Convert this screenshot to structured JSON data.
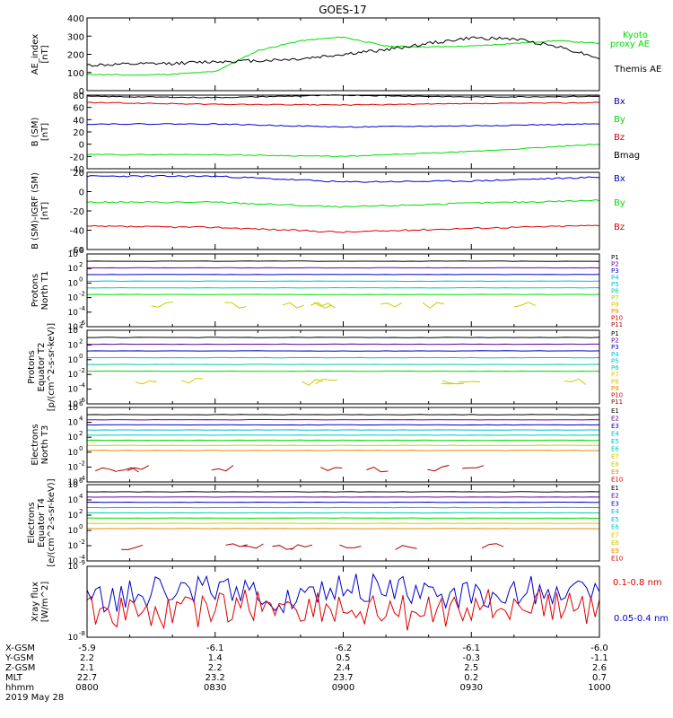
{
  "title": "GOES-17",
  "footer": {
    "rows": [
      {
        "label": "X-GSM",
        "values": [
          "-5.9",
          "-6.1",
          "-6.2",
          "-6.1",
          "-6.0"
        ]
      },
      {
        "label": "Y-GSM",
        "values": [
          "2.2",
          "1.4",
          "0.5",
          "-0.3",
          "-1.1"
        ]
      },
      {
        "label": "Z-GSM",
        "values": [
          "2.1",
          "2.2",
          "2.4",
          "2.5",
          "2.6"
        ]
      },
      {
        "label": "MLT",
        "values": [
          "22.7",
          "23.2",
          "23.7",
          "0.2",
          "0.7"
        ]
      },
      {
        "label": "hhmm",
        "values": [
          "0800",
          "0830",
          "0900",
          "0930",
          "1000"
        ]
      }
    ],
    "date": "2019 May 28"
  },
  "colors": {
    "black": "#000000",
    "green": "#00dd00",
    "blue": "#0000cc",
    "red": "#dd0000",
    "purple": "#660099",
    "cyan": "#00bbdd",
    "aqua": "#00ccaa",
    "yellow": "#cccc00",
    "orange": "#ee8800",
    "darkred": "#aa0000"
  },
  "chart_data": [
    {
      "type": "line",
      "ylabel": "AE_index\n[nT]",
      "ylim": [
        0,
        400
      ],
      "yticks": [
        "0",
        "100",
        "200",
        "300",
        "400"
      ],
      "x": [
        0,
        10,
        20,
        30,
        40,
        50,
        60,
        70,
        80,
        90,
        100,
        110,
        120
      ],
      "series": [
        {
          "name": "Kyoto proxy AE",
          "color": "#00dd00",
          "values": [
            90,
            85,
            90,
            105,
            220,
            275,
            295,
            245,
            240,
            245,
            260,
            275,
            260
          ]
        },
        {
          "name": "Themis AE",
          "color": "#000000",
          "values": [
            140,
            145,
            150,
            160,
            165,
            175,
            200,
            225,
            260,
            290,
            285,
            245,
            180
          ]
        }
      ]
    },
    {
      "type": "line",
      "ylabel": "B (SM)\n[nT]",
      "ylim": [
        -40,
        80
      ],
      "yticks": [
        "-40",
        "-20",
        "0",
        "20",
        "40",
        "60",
        "80"
      ],
      "series": [
        {
          "name": "Bx",
          "color": "#0000cc",
          "values": [
            33,
            33,
            28,
            30,
            33
          ]
        },
        {
          "name": "By",
          "color": "#00dd00",
          "values": [
            -17,
            -17,
            -20,
            -12,
            0
          ]
        },
        {
          "name": "Bz",
          "color": "#dd0000",
          "values": [
            68,
            65,
            64,
            66,
            68
          ]
        },
        {
          "name": "Bmag",
          "color": "#000000",
          "values": [
            78,
            76,
            80,
            77,
            78
          ]
        }
      ]
    },
    {
      "type": "line",
      "ylabel": "B (SM)-IGRF (SM)\n[nT]",
      "ylim": [
        -60,
        20
      ],
      "yticks": [
        "-60",
        "-40",
        "-20",
        "0",
        "20"
      ],
      "series": [
        {
          "name": "Bx",
          "color": "#0000cc",
          "values": [
            16,
            16,
            10,
            11,
            15
          ]
        },
        {
          "name": "By",
          "color": "#00dd00",
          "values": [
            -11,
            -11,
            -16,
            -12,
            -9
          ]
        },
        {
          "name": "Bz",
          "color": "#dd0000",
          "values": [
            -36,
            -37,
            -42,
            -38,
            -35
          ]
        }
      ]
    },
    {
      "type": "line",
      "ylabel": "Protons\nNorth T1",
      "scale": "log",
      "yticks": [
        "10^-6",
        "10^-4",
        "10^-2",
        "10^0",
        "10^2",
        "10^4"
      ],
      "legend": [
        "P1",
        "P2",
        "P3",
        "P4",
        "P5",
        "P6",
        "P7",
        "P8",
        "P9",
        "P10",
        "P11"
      ]
    },
    {
      "type": "line",
      "ylabel": "Protons\nEquator T2\n[p/(cm^2-s-sr-keV)]",
      "scale": "log",
      "yticks": [
        "10^-6",
        "10^-4",
        "10^-2",
        "10^0",
        "10^2",
        "10^4"
      ],
      "legend": [
        "P1",
        "P2",
        "P3",
        "P4",
        "P5",
        "P6",
        "P7",
        "P8",
        "P9",
        "P10",
        "P11"
      ]
    },
    {
      "type": "line",
      "ylabel": "Electrons\nNorth T3",
      "scale": "log",
      "yticks": [
        "10^-4",
        "10^-2",
        "10^0",
        "10^2",
        "10^4",
        "10^6"
      ],
      "legend": [
        "E1",
        "E2",
        "E3",
        "E4",
        "E5",
        "E6",
        "E7",
        "E8",
        "E9",
        "E10"
      ]
    },
    {
      "type": "line",
      "ylabel": "Electrons\nEquator T4\n[e/(cm^2-s-sr-keV)]",
      "scale": "log",
      "yticks": [
        "10^-4",
        "10^-2",
        "10^0",
        "10^2",
        "10^4",
        "10^6"
      ],
      "legend": [
        "E1",
        "E2",
        "E3",
        "E4",
        "E5",
        "E6",
        "E7",
        "E8",
        "E9",
        "E10"
      ]
    },
    {
      "type": "line",
      "ylabel": "Xray flux\n[W/m^2]",
      "scale": "log",
      "yticks": [
        "10^-8",
        "10^-9"
      ],
      "series": [
        {
          "name": "0.1-0.8 nm",
          "color": "#dd0000"
        },
        {
          "name": "0.05-0.4 nm",
          "color": "#0000cc"
        }
      ]
    }
  ]
}
